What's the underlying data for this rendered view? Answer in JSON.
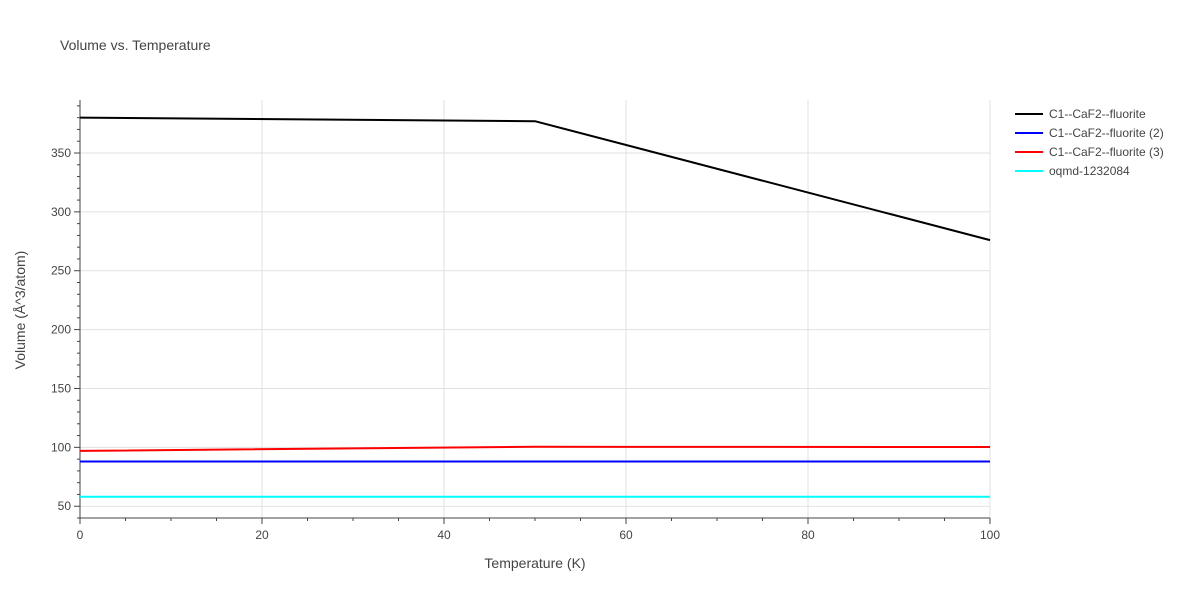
{
  "chart_data": {
    "type": "line",
    "title": "Volume vs. Temperature",
    "xlabel": "Temperature (K)",
    "ylabel": "Volume (Å^3/atom)",
    "xlim": [
      0,
      100
    ],
    "ylim": [
      40,
      395
    ],
    "xticks": [
      0,
      20,
      40,
      60,
      80,
      100
    ],
    "yticks": [
      50,
      100,
      150,
      200,
      250,
      300,
      350
    ],
    "grid": true,
    "legend_position": "top-right",
    "series": [
      {
        "name": "C1--CaF2--fluorite",
        "color": "#000000",
        "x": [
          0,
          50,
          100
        ],
        "y": [
          380,
          377,
          276
        ]
      },
      {
        "name": "C1--CaF2--fluorite (2)",
        "color": "#0000ff",
        "x": [
          0,
          50,
          100
        ],
        "y": [
          88,
          88,
          88
        ]
      },
      {
        "name": "C1--CaF2--fluorite (3)",
        "color": "#ff0000",
        "x": [
          0,
          50,
          100
        ],
        "y": [
          97,
          100.5,
          100.3
        ]
      },
      {
        "name": "oqmd-1232084",
        "color": "#00ffff",
        "x": [
          0,
          50,
          100
        ],
        "y": [
          58,
          58,
          58
        ]
      }
    ]
  }
}
